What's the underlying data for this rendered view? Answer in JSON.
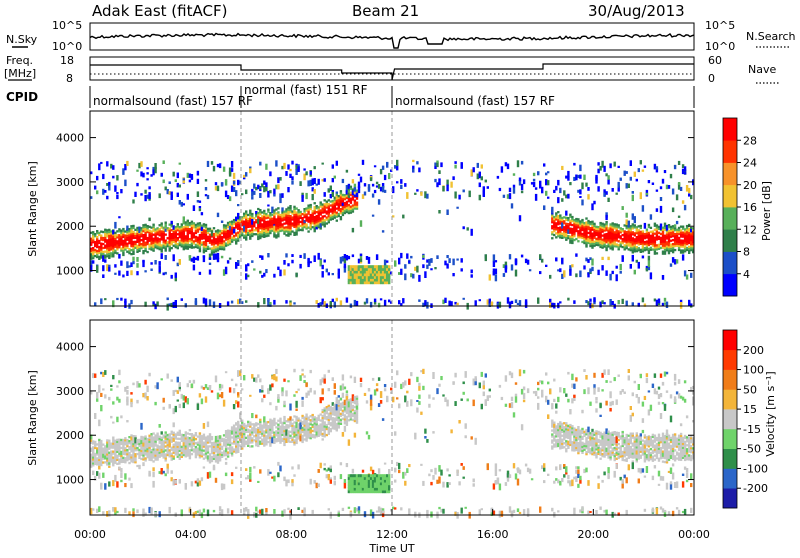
{
  "header": {
    "station": "Adak East (fitACF)",
    "beam": "Beam 21",
    "date": "30/Aug/2013"
  },
  "top_panels": {
    "nsky_label": "N.Sky",
    "nsky_ticks": [
      "10^5",
      "10^0"
    ],
    "nsearch_label": "N.Search",
    "nsearch_ticks": [
      "10^5",
      "10^0"
    ],
    "freq_label": "Freq.",
    "freq_unit": "[MHz]",
    "freq_ticks": [
      "18",
      "8"
    ],
    "nave_label": "Nave",
    "nave_ticks": [
      "60",
      "0"
    ],
    "cpid_label": "CPID",
    "cpid_modes": [
      {
        "label": "normalsound (fast) 157 RF",
        "start": 0.0,
        "end": 6.0
      },
      {
        "label": "normal (fast) 151 RF",
        "start": 6.0,
        "end": 12.0
      },
      {
        "label": "normalsound (fast) 157 RF",
        "start": 12.0,
        "end": 24.0
      }
    ]
  },
  "chart_data": [
    {
      "type": "heatmap",
      "title": "",
      "xlabel": "",
      "ylabel": "Slant Range [km]",
      "xlim": [
        0,
        24
      ],
      "ylim": [
        200,
        4600
      ],
      "yticks": [
        1000,
        2000,
        3000,
        4000
      ],
      "colorbar": {
        "label": "Power [dB]",
        "ticks": [
          "28",
          "24",
          "20",
          "16",
          "12",
          "8",
          "4"
        ],
        "colors": [
          "#0000ff",
          "#1c4fc8",
          "#2f7f4a",
          "#58b05a",
          "#f1c232",
          "#f7922a",
          "#ff3300",
          "#ff0000"
        ]
      },
      "main_echo_band": {
        "x": [
          0,
          2,
          4,
          5,
          6,
          7,
          8,
          9,
          10,
          10.5,
          18.5,
          20,
          22,
          24
        ],
        "range_km": [
          1550,
          1700,
          1800,
          1650,
          2000,
          2050,
          2100,
          2200,
          2500,
          2600,
          2000,
          1800,
          1700,
          1700
        ]
      },
      "vertical_dashed_lines_hours": [
        6,
        12
      ]
    },
    {
      "type": "heatmap",
      "title": "",
      "xlabel": "Time UT",
      "ylabel": "Slant Range [km]",
      "xlim": [
        0,
        24
      ],
      "ylim": [
        200,
        4600
      ],
      "yticks": [
        1000,
        2000,
        3000,
        4000
      ],
      "xticks": [
        "00:00",
        "04:00",
        "08:00",
        "12:00",
        "16:00",
        "20:00",
        "00:00"
      ],
      "xtick_hours": [
        0,
        4,
        8,
        12,
        16,
        20,
        24
      ],
      "colorbar": {
        "label": "Velocity [m s⁻¹]",
        "ticks": [
          "200",
          "100",
          "50",
          "15",
          "-15",
          "-50",
          "-100",
          "-200"
        ],
        "colors": [
          "#1d1da8",
          "#2b66c9",
          "#2f8f4a",
          "#6fd36a",
          "#c8c8c8",
          "#f3b53a",
          "#f07d19",
          "#ff3a00",
          "#ff0000"
        ]
      },
      "vertical_dashed_lines_hours": [
        6,
        12
      ]
    }
  ],
  "axis_labels": {
    "slant_range": "Slant Range [km]",
    "time": "Time UT",
    "power": "Power [dB]",
    "velocity": "Velocity [m s⁻¹]"
  }
}
